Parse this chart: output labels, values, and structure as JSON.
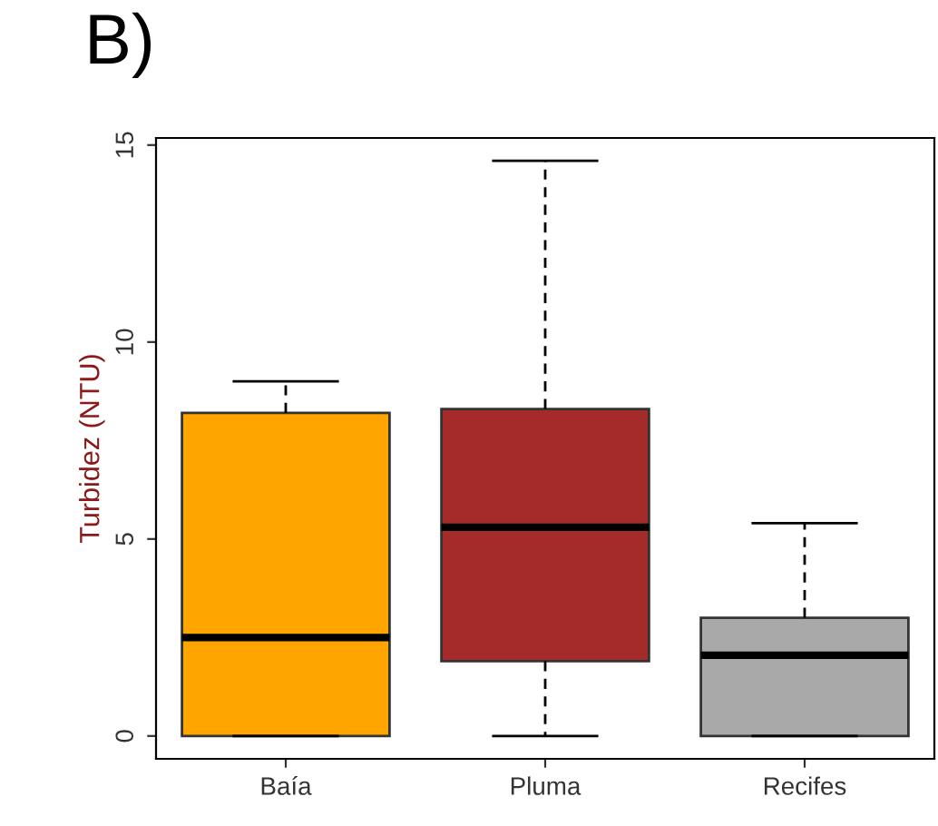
{
  "chart_data": {
    "type": "box",
    "title": "B)",
    "ylabel": "Turbidez (NTU)",
    "categories": [
      "Baía",
      "Pluma",
      "Recifes"
    ],
    "boxes": [
      {
        "low": 0,
        "q1": 0,
        "median": 2.5,
        "q3": 8.2,
        "high": 9.0
      },
      {
        "low": 0,
        "q1": 1.9,
        "median": 5.3,
        "q3": 8.3,
        "high": 14.6
      },
      {
        "low": 0,
        "q1": 0,
        "median": 2.05,
        "q3": 3.0,
        "high": 5.4
      }
    ],
    "colors": [
      "#ffa500",
      "#a52a2a",
      "#a9a9a9"
    ],
    "ylim": [
      -0.58,
      15.18
    ],
    "yticks": [
      0,
      5,
      10,
      15
    ],
    "grid": false
  }
}
